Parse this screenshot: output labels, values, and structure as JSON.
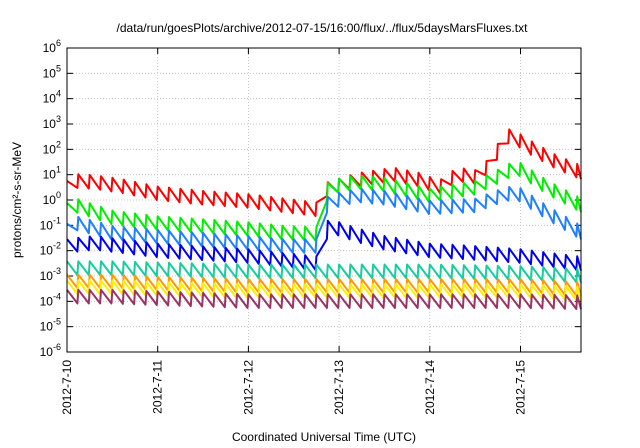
{
  "chart_data": {
    "type": "line",
    "title": "/data/run/goesPlots/archive/2012-07-15/16:00/flux/../flux/5daysMarsFluxes.txt",
    "xlabel": "Coordinated Universal Time (UTC)",
    "ylabel": "protons/cm²-s-sr-MeV",
    "y_scale": "log",
    "ylim": [
      1e-06,
      1000000.0
    ],
    "xlim": [
      "2012-07-10 00:00",
      "2012-07-15 16:00"
    ],
    "x_ticks": [
      "2012-7-10",
      "2012-7-11",
      "2012-7-12",
      "2012-7-13",
      "2012-7-14",
      "2012-7-15"
    ],
    "y_ticks": [
      {
        "base": "10",
        "exp": "-6"
      },
      {
        "base": "10",
        "exp": "-5"
      },
      {
        "base": "10",
        "exp": "-4"
      },
      {
        "base": "10",
        "exp": "-3"
      },
      {
        "base": "10",
        "exp": "-2"
      },
      {
        "base": "10",
        "exp": "-1"
      },
      {
        "base": "10",
        "exp": "0"
      },
      {
        "base": "10",
        "exp": "1"
      },
      {
        "base": "10",
        "exp": "2"
      },
      {
        "base": "10",
        "exp": "3"
      },
      {
        "base": "10",
        "exp": "4"
      },
      {
        "base": "10",
        "exp": "5"
      },
      {
        "base": "10",
        "exp": "6"
      }
    ],
    "grid": true,
    "series_note_days": "x values are days after 2012-07-10 00:00 UTC",
    "series": [
      {
        "color": "#ff0000",
        "x": [
          0,
          0.1,
          0.3,
          0.6,
          1.0,
          1.5,
          2.0,
          2.4,
          2.8,
          2.85,
          3.2,
          3.6,
          3.9,
          4.1,
          4.3,
          4.5,
          4.7,
          4.8,
          4.9,
          5.1,
          5.4,
          5.67
        ],
        "y": [
          3,
          5.5,
          5,
          3.5,
          1.8,
          1.2,
          0.9,
          0.6,
          0.4,
          2.5,
          6,
          10,
          6,
          3,
          10,
          8,
          30,
          250,
          350,
          120,
          30,
          12
        ]
      },
      {
        "color": "#00ee00",
        "x": [
          0,
          0.1,
          0.5,
          1.0,
          2.0,
          2.4,
          2.75,
          2.82,
          2.88,
          3.2,
          3.5,
          4.0,
          4.5,
          4.8,
          4.95,
          5.3,
          5.67
        ],
        "y": [
          0.4,
          0.6,
          0.2,
          0.12,
          0.07,
          0.05,
          0.045,
          0.3,
          3,
          5,
          4,
          1.5,
          3,
          10,
          20,
          3,
          0.6
        ]
      },
      {
        "color": "#1e7fff",
        "x": [
          0,
          0.1,
          0.5,
          1.0,
          2.0,
          2.4,
          2.75,
          2.82,
          2.88,
          3.2,
          3.5,
          4.0,
          4.5,
          4.8,
          4.95,
          5.3,
          5.67
        ],
        "y": [
          0.06,
          0.12,
          0.05,
          0.035,
          0.02,
          0.015,
          0.015,
          0.2,
          0.8,
          1.5,
          1.2,
          0.5,
          0.6,
          1.5,
          2,
          0.3,
          0.05
        ]
      },
      {
        "color": "#0000ee",
        "x": [
          0,
          0.3,
          1.0,
          2.0,
          2.8,
          2.88,
          3.2,
          3.5,
          4.0,
          4.5,
          5.0,
          5.67
        ],
        "y": [
          0.015,
          0.02,
          0.01,
          0.006,
          0.003,
          0.1,
          0.04,
          0.02,
          0.01,
          0.008,
          0.006,
          0.003
        ]
      },
      {
        "color": "#19cca0",
        "x": [
          0,
          0.5,
          1.0,
          2.0,
          3.0,
          4.0,
          5.0,
          5.67
        ],
        "y": [
          0.002,
          0.002,
          0.0018,
          0.0015,
          0.0015,
          0.0015,
          0.0013,
          0.001
        ]
      },
      {
        "color": "#ff9900",
        "x": [
          0,
          0.5,
          1.0,
          2.0,
          3.0,
          4.0,
          5.0,
          5.67
        ],
        "y": [
          0.0006,
          0.0006,
          0.0005,
          0.0004,
          0.0004,
          0.0004,
          0.0004,
          0.0003
        ]
      },
      {
        "color": "#ffee00",
        "x": [
          0,
          0.5,
          1.0,
          2.0,
          3.0,
          4.0,
          5.0,
          5.67
        ],
        "y": [
          0.00035,
          0.00035,
          0.0003,
          0.00025,
          0.00025,
          0.00025,
          0.00025,
          0.0002
        ]
      },
      {
        "color": "#993366",
        "x": [
          0,
          0.5,
          1.0,
          2.0,
          3.0,
          4.0,
          5.0,
          5.67
        ],
        "y": [
          0.00015,
          0.00015,
          0.00013,
          0.0001,
          0.0001,
          0.0001,
          0.0001,
          9e-05
        ]
      }
    ]
  }
}
